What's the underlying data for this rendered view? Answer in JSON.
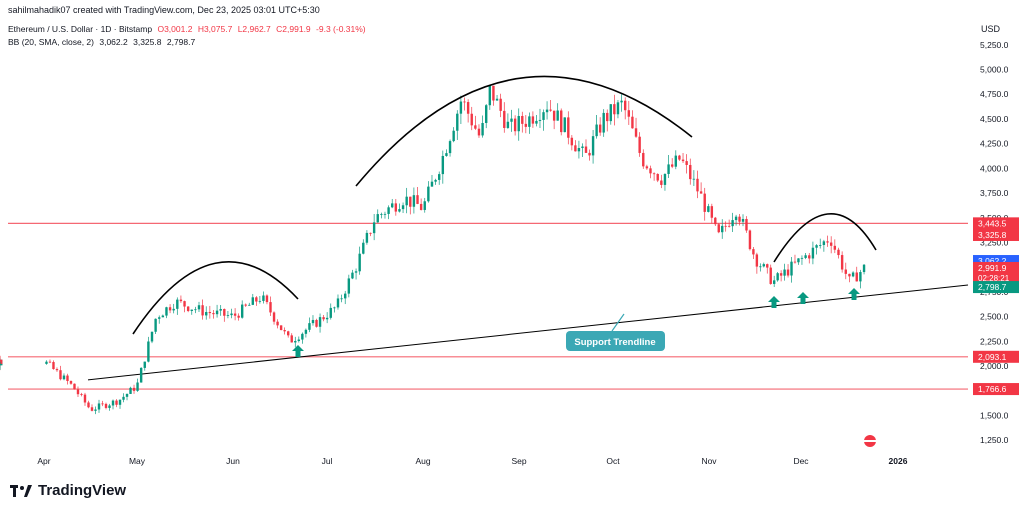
{
  "header": {
    "credit": "sahilmahadik07 created with TradingView.com, Dec 23, 2025 03:01 UTC+5:30"
  },
  "legend": {
    "symbol": "Ethereum / U.S. Dollar · 1D · Bitstamp",
    "open": "O3,001.2",
    "high": "H3,075.7",
    "low": "L2,962.7",
    "close": "C2,991.9",
    "change": "-9.3 (-0.31%)"
  },
  "bb": {
    "label": "BB (20, SMA, close, 2)",
    "mid": "3,062.2",
    "upper": "3,325.8",
    "lower": "2,798.7"
  },
  "footer": {
    "brand": "TradingView"
  },
  "colors": {
    "up": "#089981",
    "down": "#f23645",
    "basis": "#2962ff",
    "upper_band": "#f23645",
    "lower_band": "#089981",
    "band_fill": "#e3f2fd",
    "level_line": "#f23645",
    "annotation": "#000000",
    "callout": "#3ba8b5",
    "arrow": "#089981"
  },
  "chart_data": {
    "type": "candlestick",
    "x_axis": {
      "labels": [
        "Apr",
        "May",
        "Jun",
        "Jul",
        "Aug",
        "Sep",
        "Oct",
        "Nov",
        "Dec",
        "2026"
      ]
    },
    "y_axis": {
      "unit": "USD",
      "range": [
        1150,
        5400
      ],
      "ticks": [
        "5,250.0",
        "5,000.0",
        "4,750.0",
        "4,500.0",
        "4,250.0",
        "4,000.0",
        "3,750.0",
        "3,500.0",
        "3,250.0",
        "3,000.0",
        "2,750.0",
        "2,500.0",
        "2,250.0",
        "2,000.0",
        "1,750.0",
        "1,500.0",
        "1,250.0"
      ]
    },
    "horizontal_levels": [
      {
        "value": 3443.5,
        "label": "3,443.5"
      },
      {
        "value": 2093.1,
        "label": "2,093.1"
      },
      {
        "value": 1766.6,
        "label": "1,766.6"
      }
    ],
    "price_labels": [
      {
        "value": 3325.8,
        "label": "3,325.8",
        "color": "#f23645"
      },
      {
        "value": 3062.2,
        "label": "3,062.2",
        "color": "#2962ff"
      },
      {
        "value": 2991.9,
        "label": "2,991.9",
        "sub": "02:28:21",
        "color": "#f23645"
      },
      {
        "value": 2798.7,
        "label": "2,798.7",
        "color": "#089981"
      }
    ],
    "annotations": {
      "trendline_label": "Support Trendline"
    },
    "monthly_path": [
      {
        "m": 0.0,
        "p": 2050
      },
      {
        "m": 0.3,
        "p": 1800
      },
      {
        "m": 0.5,
        "p": 1560
      },
      {
        "m": 0.8,
        "p": 1650
      },
      {
        "m": 1.0,
        "p": 1800
      },
      {
        "m": 1.2,
        "p": 2500
      },
      {
        "m": 1.4,
        "p": 2650
      },
      {
        "m": 1.7,
        "p": 2550
      },
      {
        "m": 2.0,
        "p": 2500
      },
      {
        "m": 2.3,
        "p": 2700
      },
      {
        "m": 2.6,
        "p": 2250
      },
      {
        "m": 2.9,
        "p": 2450
      },
      {
        "m": 3.1,
        "p": 2600
      },
      {
        "m": 3.3,
        "p": 3000
      },
      {
        "m": 3.5,
        "p": 3500
      },
      {
        "m": 3.8,
        "p": 3700
      },
      {
        "m": 4.0,
        "p": 3600
      },
      {
        "m": 4.2,
        "p": 4100
      },
      {
        "m": 4.4,
        "p": 4700
      },
      {
        "m": 4.6,
        "p": 4300
      },
      {
        "m": 4.7,
        "p": 4800
      },
      {
        "m": 4.9,
        "p": 4400
      },
      {
        "m": 5.1,
        "p": 4500
      },
      {
        "m": 5.3,
        "p": 4650
      },
      {
        "m": 5.5,
        "p": 4400
      },
      {
        "m": 5.7,
        "p": 4100
      },
      {
        "m": 5.9,
        "p": 4500
      },
      {
        "m": 6.1,
        "p": 4650
      },
      {
        "m": 6.3,
        "p": 4100
      },
      {
        "m": 6.5,
        "p": 3900
      },
      {
        "m": 6.7,
        "p": 4100
      },
      {
        "m": 6.9,
        "p": 3750
      },
      {
        "m": 7.1,
        "p": 3300
      },
      {
        "m": 7.3,
        "p": 3600
      },
      {
        "m": 7.5,
        "p": 3100
      },
      {
        "m": 7.7,
        "p": 2850
      },
      {
        "m": 7.9,
        "p": 3000
      },
      {
        "m": 8.1,
        "p": 3150
      },
      {
        "m": 8.3,
        "p": 3300
      },
      {
        "m": 8.5,
        "p": 2850
      },
      {
        "m": 8.65,
        "p": 2990
      }
    ]
  }
}
